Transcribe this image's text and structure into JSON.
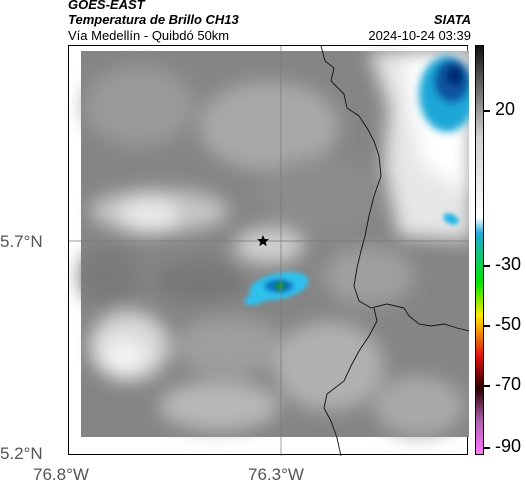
{
  "header": {
    "satellite": "GOES-EAST",
    "product": "Temperatura de Brillo CH13",
    "region": "Vía Medellín - Quibdó 50km",
    "organization": "SIATA",
    "timestamp": "2024-10-24 03:39"
  },
  "map": {
    "x_ticks": [
      "76.8°W",
      "76.3°W"
    ],
    "y_ticks": [
      "5.7°N",
      "5.2°N"
    ],
    "marker_icon": "star-icon"
  },
  "colorbar": {
    "ticks": [
      "20",
      "-30",
      "-50",
      "-70",
      "-90"
    ],
    "colors": [
      "#111111",
      "#cfcfcf",
      "#ffffff",
      "#1fa9d9",
      "#00e600",
      "#ffea00",
      "#e01010",
      "#2a0000",
      "#b060b0",
      "#ff77ff"
    ]
  }
}
